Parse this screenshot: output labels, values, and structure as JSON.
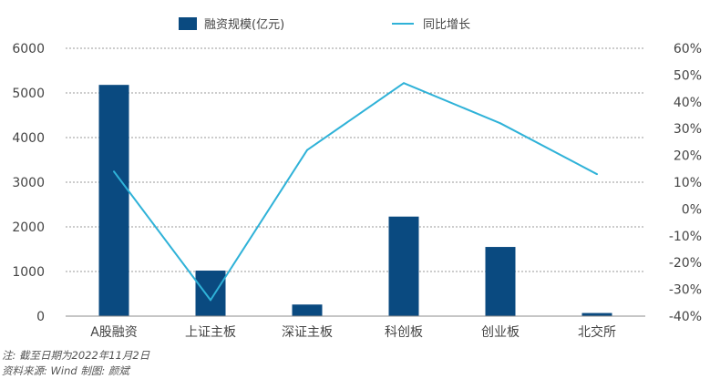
{
  "chart_data": {
    "type": "bar",
    "categories": [
      "A股融资",
      "上证主板",
      "深证主板",
      "科创板",
      "创业板",
      "北交所"
    ],
    "series": [
      {
        "name": "融资规模(亿元)",
        "type": "bar",
        "axis": "left",
        "values": [
          5180,
          1020,
          260,
          2230,
          1550,
          70
        ]
      },
      {
        "name": "同比增长",
        "type": "line",
        "axis": "right",
        "values": [
          0.14,
          -0.34,
          0.22,
          0.47,
          0.32,
          0.13
        ]
      }
    ],
    "y_left": {
      "ticks": [
        0,
        1000,
        2000,
        3000,
        4000,
        5000,
        6000
      ],
      "range": [
        0,
        6000
      ]
    },
    "y_right": {
      "ticks": [
        "60%",
        "50%",
        "40%",
        "30%",
        "20%",
        "10%",
        "0%",
        "-10%",
        "-20%",
        "-30%",
        "-40%"
      ],
      "range": [
        -0.4,
        0.6
      ]
    },
    "grid": true,
    "legend_position": "top",
    "colors": {
      "bar": "#0a4a80",
      "line": "#2fb2d8",
      "grid": "#9a9a9a",
      "text": "#444444"
    }
  },
  "notes": {
    "line1": "注: 截至日期为2022年11月2日",
    "line2": "资料来源: Wind       制图: 颜斌"
  }
}
